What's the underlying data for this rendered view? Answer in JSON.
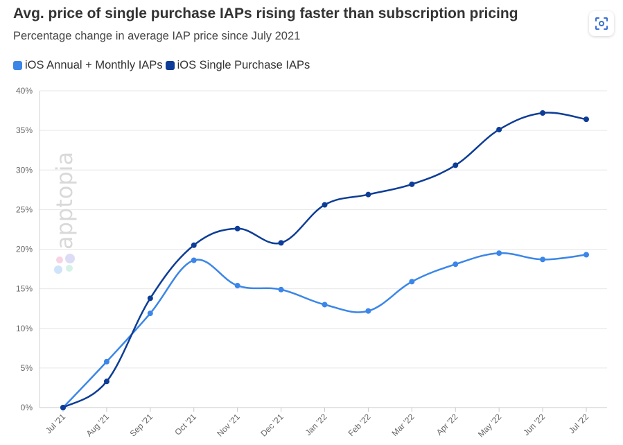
{
  "header": {
    "title": "Avg. price of single purchase IAPs rising faster than subscription pricing",
    "subtitle": "Percentage change in average IAP price since July 2021"
  },
  "controls": {
    "expand_icon": "scan-expand-icon"
  },
  "watermark": {
    "text": "apptopia"
  },
  "colors": {
    "annual_monthly": "#3b86e8",
    "single_purchase": "#0d3d96",
    "grid": "#e6e6e6"
  },
  "chart_data": {
    "type": "line",
    "title": "Avg. price of single purchase IAPs rising faster than subscription pricing",
    "subtitle": "Percentage change in average IAP price since July 2021",
    "categories": [
      "Jul '21",
      "Aug '21",
      "Sep '21",
      "Oct '21",
      "Nov '21",
      "Dec '21",
      "Jan '22",
      "Feb '22",
      "Mar '22",
      "Apr '22",
      "May '22",
      "Jun '22",
      "Jul '22"
    ],
    "series": [
      {
        "name": "iOS Annual + Monthly IAPs",
        "color": "#3b86e8",
        "values": [
          0,
          5.8,
          11.9,
          18.6,
          15.4,
          14.9,
          13.0,
          12.2,
          15.9,
          18.1,
          19.5,
          18.7,
          19.3
        ]
      },
      {
        "name": "iOS Single Purchase IAPs",
        "color": "#0d3d96",
        "values": [
          0,
          3.3,
          13.8,
          20.5,
          22.6,
          20.8,
          25.6,
          26.9,
          28.2,
          30.6,
          35.1,
          37.2,
          36.4
        ]
      }
    ],
    "yticks": [
      "0%",
      "5%",
      "10%",
      "15%",
      "20%",
      "25%",
      "30%",
      "35%",
      "40%"
    ],
    "ylim": [
      0,
      40
    ],
    "grid": true,
    "legend": "top-left"
  }
}
